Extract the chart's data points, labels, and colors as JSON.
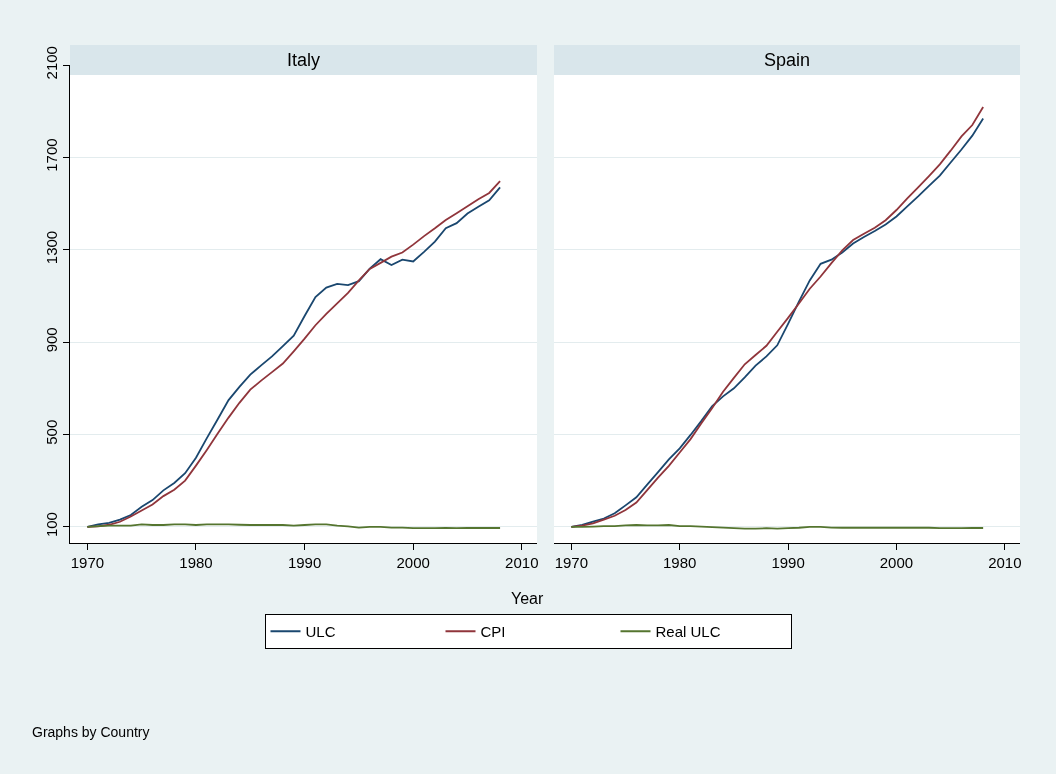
{
  "chart_data": [
    {
      "type": "line",
      "title": "Italy",
      "xlabel": "Year",
      "annotations": [
        "Graphs by Country"
      ],
      "legend": "bottom",
      "grid": "y",
      "line_style": "solid",
      "x": [
        1970,
        1971,
        1972,
        1973,
        1974,
        1975,
        1976,
        1977,
        1978,
        1979,
        1980,
        1981,
        1982,
        1983,
        1984,
        1985,
        1986,
        1987,
        1988,
        1989,
        1990,
        1991,
        1992,
        1993,
        1994,
        1995,
        1996,
        1997,
        1998,
        1999,
        2000,
        2001,
        2002,
        2003,
        2004,
        2005,
        2006,
        2007,
        2008
      ],
      "xlim": [
        1968.4,
        2011.4
      ],
      "xticks": [
        1970,
        1980,
        1990,
        2000,
        2010
      ],
      "ylim": [
        30,
        2100
      ],
      "yticks": [
        100,
        500,
        900,
        1300,
        1700,
        2100
      ],
      "series": [
        {
          "name": "ULC",
          "color": "#1a476f",
          "values": [
            100,
            111,
            117,
            131,
            151,
            187,
            216,
            258,
            290,
            332,
            399,
            484,
            566,
            649,
            706,
            759,
            799,
            838,
            883,
            928,
            1013,
            1095,
            1136,
            1152,
            1147,
            1164,
            1218,
            1259,
            1234,
            1257,
            1249,
            1291,
            1335,
            1393,
            1415,
            1457,
            1486,
            1514,
            1570
          ]
        },
        {
          "name": "CPI",
          "color": "#90353b",
          "values": [
            100,
            102,
            109,
            122,
            145,
            171,
            197,
            233,
            261,
            300,
            365,
            433,
            504,
            573,
            637,
            694,
            733,
            770,
            807,
            860,
            915,
            973,
            1022,
            1068,
            1113,
            1167,
            1217,
            1243,
            1270,
            1288,
            1322,
            1359,
            1393,
            1429,
            1458,
            1488,
            1519,
            1546,
            1597
          ]
        },
        {
          "name": "Real ULC",
          "color": "#55752f",
          "values": [
            100,
            103,
            105,
            105,
            105,
            111,
            108,
            108,
            111,
            111,
            108,
            111,
            111,
            111,
            109,
            108,
            108,
            108,
            108,
            105,
            108,
            111,
            111,
            105,
            102,
            97,
            100,
            100,
            97,
            97,
            94,
            94,
            94,
            95,
            94,
            95,
            95,
            95,
            95
          ]
        }
      ]
    },
    {
      "type": "line",
      "title": "Spain",
      "grid": "y",
      "line_style": "solid",
      "tick_labels": "x",
      "x": [
        1970,
        1971,
        1972,
        1973,
        1974,
        1975,
        1976,
        1977,
        1978,
        1979,
        1980,
        1981,
        1982,
        1983,
        1984,
        1985,
        1986,
        1987,
        1988,
        1989,
        1990,
        1991,
        1992,
        1993,
        1994,
        1995,
        1996,
        1997,
        1998,
        1999,
        2000,
        2001,
        2002,
        2003,
        2004,
        2005,
        2006,
        2007,
        2008
      ],
      "xlim": [
        1968.4,
        2011.4
      ],
      "xticks": [
        1970,
        1980,
        1990,
        2000,
        2010
      ],
      "ylim": [
        30,
        2100
      ],
      "yticks": [
        100,
        500,
        900,
        1300,
        1700,
        2100
      ],
      "series": [
        {
          "color": "#1a476f",
          "values": [
            100,
            109,
            123,
            136,
            159,
            193,
            228,
            283,
            337,
            392,
            440,
            498,
            559,
            623,
            665,
            700,
            747,
            798,
            838,
            886,
            979,
            1075,
            1167,
            1239,
            1257,
            1288,
            1327,
            1355,
            1381,
            1409,
            1444,
            1488,
            1531,
            1577,
            1621,
            1678,
            1734,
            1794,
            1868
          ]
        },
        {
          "color": "#90353b",
          "values": [
            100,
            105,
            115,
            131,
            148,
            173,
            205,
            259,
            313,
            364,
            422,
            480,
            549,
            615,
            685,
            745,
            804,
            844,
            884,
            945,
            1005,
            1067,
            1131,
            1184,
            1242,
            1297,
            1342,
            1369,
            1395,
            1428,
            1472,
            1522,
            1570,
            1619,
            1670,
            1729,
            1791,
            1840,
            1918
          ]
        },
        {
          "color": "#55752f",
          "values": [
            100,
            100,
            101,
            103,
            103,
            106,
            108,
            106,
            106,
            108,
            103,
            103,
            101,
            99,
            97,
            94,
            92,
            92,
            94,
            92,
            94,
            96,
            100,
            100,
            97,
            96,
            96,
            96,
            96,
            96,
            96,
            96,
            96,
            96,
            94,
            94,
            94,
            95,
            95
          ]
        }
      ]
    }
  ]
}
